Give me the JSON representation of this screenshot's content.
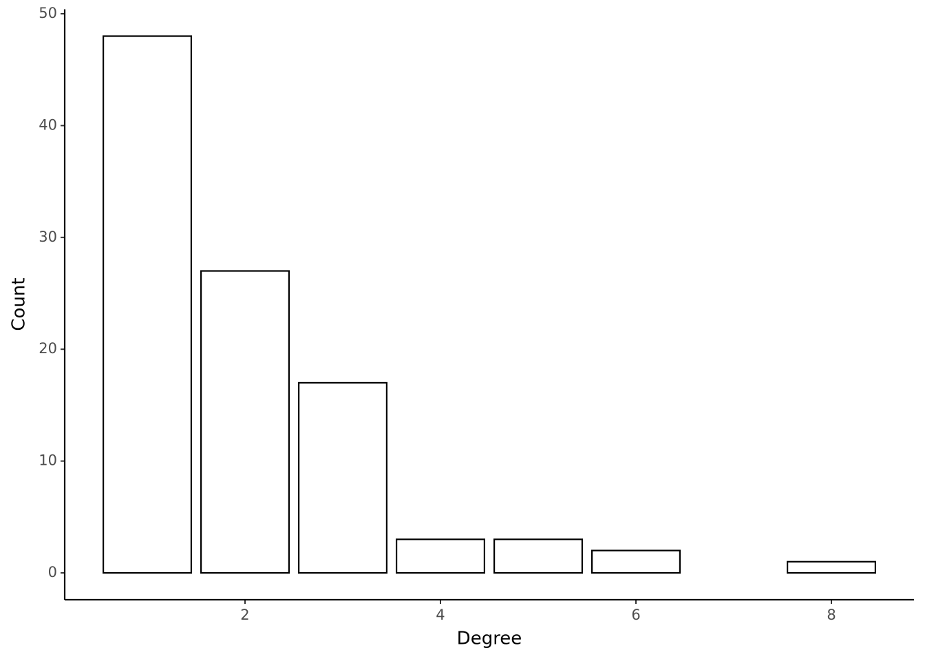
{
  "chart_data": {
    "type": "bar",
    "x_label": "Degree",
    "y_label": "Count",
    "x": [
      1,
      2,
      3,
      4,
      5,
      6,
      8
    ],
    "values": [
      48,
      27,
      17,
      3,
      3,
      2,
      1
    ],
    "color": "#ffffff",
    "edgecolor": "#000000",
    "xlim": [
      0.155,
      8.845
    ],
    "xticks": [
      2,
      4,
      6,
      8
    ],
    "ylim": [
      -2.4,
      50.4
    ],
    "yticks": [
      0,
      10,
      20,
      30,
      40,
      50
    ],
    "grid": false
  }
}
